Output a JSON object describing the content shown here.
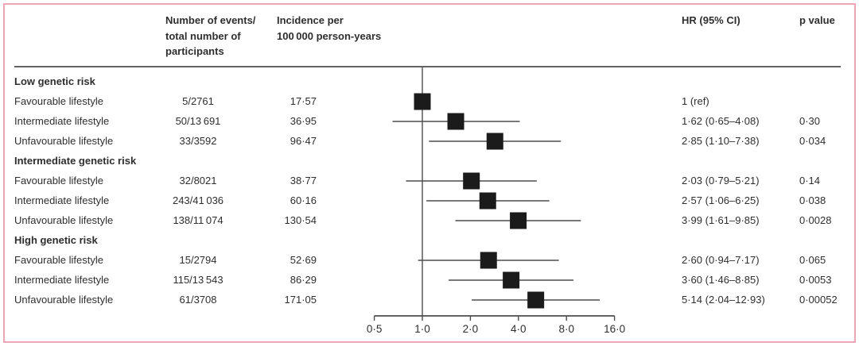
{
  "figure": {
    "border_color": "#eda6b6",
    "line_color": "#4d4d4d",
    "marker_color": "#1b1b1b",
    "text_color": "#2e2e2e"
  },
  "header": {
    "events_lines": [
      "Number of events/",
      "total number of",
      "participants"
    ],
    "incidence_lines": [
      "Incidence per",
      "100 000 person-years"
    ],
    "hr": "HR (95% CI)",
    "p_value": "p value"
  },
  "rows": [
    {
      "type": "group",
      "label": "Low genetic risk",
      "events": "",
      "incidence": "",
      "hr_ci": "",
      "p": ""
    },
    {
      "type": "data",
      "label": "Favourable lifestyle",
      "events": "5/2761",
      "incidence": "17·57",
      "hr_ci": "1 (ref)",
      "p": ""
    },
    {
      "type": "data",
      "label": "Intermediate lifestyle",
      "events": "50/13 691",
      "incidence": "36·95",
      "hr_ci": "1·62 (0·65–4·08)",
      "p": "0·30"
    },
    {
      "type": "data",
      "label": "Unfavourable lifestyle",
      "events": "33/3592",
      "incidence": "96·47",
      "hr_ci": "2·85 (1·10–7·38)",
      "p": "0·034"
    },
    {
      "type": "group",
      "label": "Intermediate genetic risk",
      "events": "",
      "incidence": "",
      "hr_ci": "",
      "p": ""
    },
    {
      "type": "data",
      "label": "Favourable lifestyle",
      "events": "32/8021",
      "incidence": "38·77",
      "hr_ci": "2·03 (0·79–5·21)",
      "p": "0·14"
    },
    {
      "type": "data",
      "label": "Intermediate lifestyle",
      "events": "243/41 036",
      "incidence": "60·16",
      "hr_ci": "2·57 (1·06–6·25)",
      "p": "0·038"
    },
    {
      "type": "data",
      "label": "Unfavourable lifestyle",
      "events": "138/11 074",
      "incidence": "130·54",
      "hr_ci": "3·99 (1·61–9·85)",
      "p": "0·0028"
    },
    {
      "type": "group",
      "label": "High genetic risk",
      "events": "",
      "incidence": "",
      "hr_ci": "",
      "p": ""
    },
    {
      "type": "data",
      "label": "Favourable lifestyle",
      "events": "15/2794",
      "incidence": "52·69",
      "hr_ci": "2·60 (0·94–7·17)",
      "p": "0·065"
    },
    {
      "type": "data",
      "label": "Intermediate lifestyle",
      "events": "115/13 543",
      "incidence": "86·29",
      "hr_ci": "3·60 (1·46–8·85)",
      "p": "0·0053"
    },
    {
      "type": "data",
      "label": "Unfavourable lifestyle",
      "events": "61/3708",
      "incidence": "171·05",
      "hr_ci": "5·14 (2·04–12·93)",
      "p": "0·00052"
    }
  ],
  "chart_data": {
    "type": "scatter",
    "subtype": "forest-plot",
    "x_scale": "log2",
    "x_range": [
      0.5,
      16
    ],
    "x_ticks": [
      0.5,
      1,
      2,
      4,
      8,
      16
    ],
    "x_tick_labels": [
      "0·5",
      "1·0",
      "2·0",
      "4·0",
      "8·0",
      "16·0"
    ],
    "reference_x": 1,
    "grid": false,
    "points": [
      {
        "group": "Low genetic risk",
        "label": "Favourable lifestyle",
        "hr": 1.0,
        "ci_low": null,
        "ci_high": null
      },
      {
        "group": "Low genetic risk",
        "label": "Intermediate lifestyle",
        "hr": 1.62,
        "ci_low": 0.65,
        "ci_high": 4.08
      },
      {
        "group": "Low genetic risk",
        "label": "Unfavourable lifestyle",
        "hr": 2.85,
        "ci_low": 1.1,
        "ci_high": 7.38
      },
      {
        "group": "Intermediate genetic risk",
        "label": "Favourable lifestyle",
        "hr": 2.03,
        "ci_low": 0.79,
        "ci_high": 5.21
      },
      {
        "group": "Intermediate genetic risk",
        "label": "Intermediate lifestyle",
        "hr": 2.57,
        "ci_low": 1.06,
        "ci_high": 6.25
      },
      {
        "group": "Intermediate genetic risk",
        "label": "Unfavourable lifestyle",
        "hr": 3.99,
        "ci_low": 1.61,
        "ci_high": 9.85
      },
      {
        "group": "High genetic risk",
        "label": "Favourable lifestyle",
        "hr": 2.6,
        "ci_low": 0.94,
        "ci_high": 7.17
      },
      {
        "group": "High genetic risk",
        "label": "Intermediate lifestyle",
        "hr": 3.6,
        "ci_low": 1.46,
        "ci_high": 8.85
      },
      {
        "group": "High genetic risk",
        "label": "Unfavourable lifestyle",
        "hr": 5.14,
        "ci_low": 2.04,
        "ci_high": 12.93
      }
    ]
  }
}
